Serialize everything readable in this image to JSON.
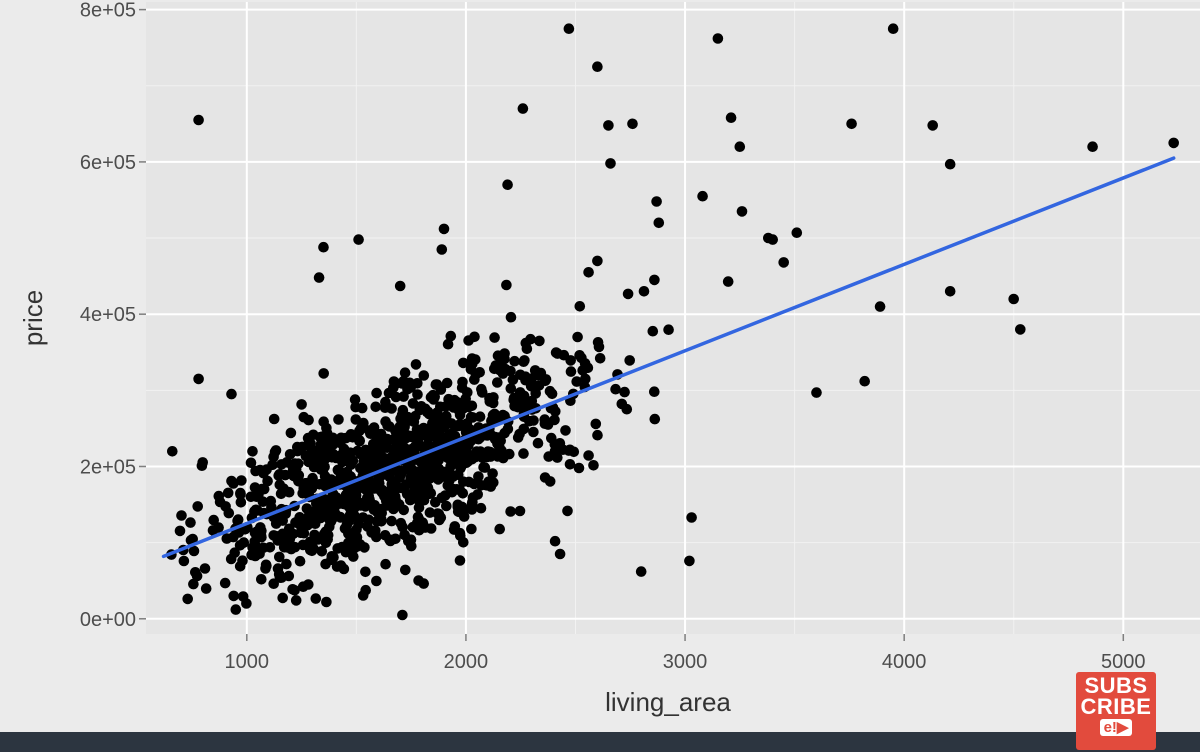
{
  "chart_data": {
    "type": "scatter",
    "xlabel": "living_area",
    "ylabel": "price",
    "xlim": [
      540,
      5350
    ],
    "ylim": [
      -20000,
      810000
    ],
    "x_ticks": [
      1000,
      2000,
      3000,
      4000,
      5000
    ],
    "y_ticks": [
      0,
      200000,
      400000,
      600000,
      800000
    ],
    "x_tick_labels": [
      "1000",
      "2000",
      "3000",
      "4000",
      "5000"
    ],
    "y_tick_labels": [
      "0e+00",
      "2e+05",
      "4e+05",
      "6e+05",
      "8e+05"
    ],
    "grid": true,
    "point_color": "#000000",
    "fit_line": {
      "type": "linear",
      "color": "#3366e0",
      "x": [
        620,
        5230
      ],
      "y": [
        82000,
        605000
      ]
    },
    "outliers": {
      "x": [
        780,
        2470,
        2600,
        2650,
        2660,
        2760,
        3150,
        3210,
        3950,
        3760,
        4130,
        4210,
        4860,
        5230,
        2260,
        2190,
        3080,
        3250,
        3260,
        3510,
        3400,
        3450,
        3380,
        4500,
        4530,
        4210,
        3890,
        3820,
        3600,
        1510,
        1350,
        1330,
        1900,
        1890,
        1700,
        1710,
        2800,
        3020,
        3030,
        2600,
        2560,
        2430,
        2870,
        2880,
        2860,
        780,
        930,
        940,
        950,
        660
      ],
      "y": [
        655000,
        775000,
        725000,
        648000,
        598000,
        650000,
        762000,
        658000,
        775000,
        650000,
        648000,
        597000,
        620000,
        625000,
        670000,
        570000,
        555000,
        620000,
        535000,
        507000,
        498000,
        468000,
        500000,
        420000,
        380000,
        430000,
        410000,
        312000,
        297000,
        498000,
        488000,
        448000,
        512000,
        485000,
        437000,
        5000,
        62000,
        76000,
        133000,
        470000,
        455000,
        85000,
        548000,
        520000,
        445000,
        315000,
        295000,
        30000,
        12000,
        220000
      ]
    },
    "dense_cloud": {
      "count": 1050,
      "x_center": 1650,
      "x_spread": 440,
      "x_min": 640,
      "x_max": 3360,
      "noise_sd": 55000,
      "y_min": 20000,
      "y_max": 470000
    }
  },
  "overlay": {
    "subscribe_line1": "SUBS",
    "subscribe_line2": "CRIBE",
    "subscribe_logo": "e!▶"
  }
}
